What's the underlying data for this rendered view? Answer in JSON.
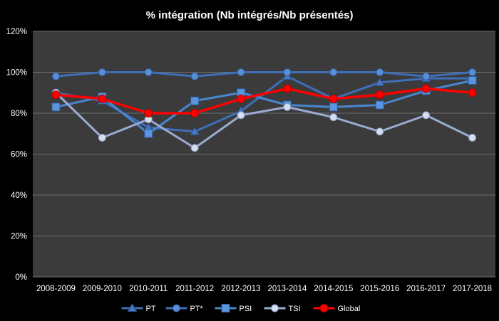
{
  "chart_data": {
    "type": "line",
    "title": "% intégration (Nb intégrés/Nb présentés)",
    "categories": [
      "2008-2009",
      "2009-2010",
      "2010-2011",
      "2011-2012",
      "2012-2013",
      "2013-2014",
      "2014-2015",
      "2015-2016",
      "2016-2017",
      "2017-2018"
    ],
    "y_ticks": [
      "0%",
      "20%",
      "40%",
      "60%",
      "80%",
      "100%",
      "120%"
    ],
    "ylim": [
      0,
      120
    ],
    "grid": "horizontal",
    "legend_position": "bottom",
    "plot_background": "#3b3b3b",
    "series": [
      {
        "name": "PT",
        "marker": "triangle",
        "color": "#3e6fb8",
        "values": [
          90,
          86,
          73,
          71,
          81,
          98,
          87,
          95,
          97,
          97
        ]
      },
      {
        "name": "PT*",
        "marker": "circle",
        "color": "#3e6fb8",
        "values": [
          98,
          100,
          100,
          98,
          100,
          100,
          100,
          100,
          98,
          100
        ]
      },
      {
        "name": "PSI",
        "marker": "square",
        "color": "#4a86d1",
        "values": [
          83,
          88,
          70,
          86,
          90,
          84,
          83,
          84,
          91,
          96
        ]
      },
      {
        "name": "TSI",
        "marker": "circle",
        "color": "#9aabd1",
        "values": [
          90,
          68,
          77,
          63,
          79,
          83,
          78,
          71,
          79,
          68
        ]
      },
      {
        "name": "Global",
        "marker": "circle",
        "color": "#ff0000",
        "values": [
          89,
          87,
          80,
          80,
          87,
          92,
          87,
          89,
          92,
          90
        ]
      }
    ]
  }
}
